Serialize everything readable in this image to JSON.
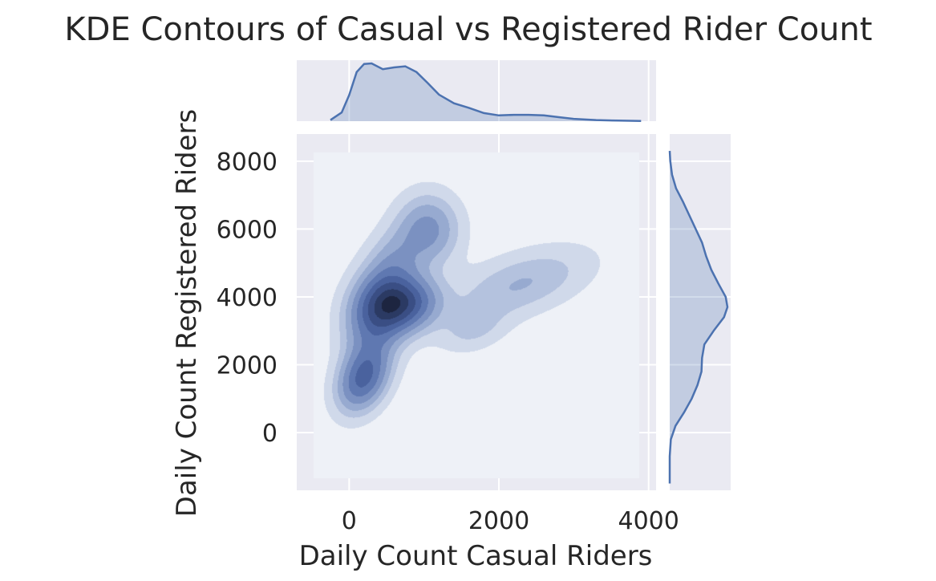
{
  "chart_data": {
    "type": "kde-contour-joint",
    "title": "KDE Contours of Casual vs Registered Rider Count",
    "xlabel": "Daily Count Casual Riders",
    "ylabel": "Daily Count Registered Riders",
    "xlim": [
      -700,
      4100
    ],
    "ylim": [
      -1700,
      8800
    ],
    "xticks": [
      0,
      2000,
      4000
    ],
    "yticks": [
      0,
      2000,
      4000,
      6000,
      8000
    ],
    "xtick_labels": [
      "0",
      "2000",
      "4000"
    ],
    "ytick_labels": [
      "0",
      "2000",
      "4000",
      "6000",
      "8000"
    ],
    "grid": true,
    "style": "seaborn darkgrid",
    "colors": {
      "background": "#eaeaf2",
      "grid": "#ffffff",
      "accent": "#4c72b0",
      "contour_levels": [
        "#eef1f7",
        "#d0d9ea",
        "#b4c2de",
        "#97aad0",
        "#7b91c1",
        "#5f78b1",
        "#4a629e",
        "#3a4e84",
        "#2b3a63",
        "#1d2540"
      ]
    },
    "kde_components": [
      {
        "x": 180,
        "y": 1600,
        "sx": 230,
        "sy": 650,
        "rho": 0.3,
        "w": 0.22
      },
      {
        "x": 700,
        "y": 3800,
        "sx": 320,
        "sy": 550,
        "rho": 0.1,
        "w": 0.26
      },
      {
        "x": 350,
        "y": 3500,
        "sx": 280,
        "sy": 900,
        "rho": 0.2,
        "w": 0.18
      },
      {
        "x": 1050,
        "y": 6000,
        "sx": 280,
        "sy": 700,
        "rho": 0.0,
        "w": 0.13
      },
      {
        "x": 600,
        "y": 5000,
        "sx": 250,
        "sy": 700,
        "rho": 0.2,
        "w": 0.08
      },
      {
        "x": 1650,
        "y": 3050,
        "sx": 300,
        "sy": 450,
        "rho": 0.3,
        "w": 0.05
      },
      {
        "x": 2300,
        "y": 4400,
        "sx": 600,
        "sy": 700,
        "rho": 0.5,
        "w": 0.08
      }
    ],
    "marginal_x_density": [
      {
        "x": -250,
        "d": 0.02
      },
      {
        "x": -100,
        "d": 0.15
      },
      {
        "x": 0,
        "d": 0.45
      },
      {
        "x": 100,
        "d": 0.85
      },
      {
        "x": 200,
        "d": 0.99
      },
      {
        "x": 300,
        "d": 1.0
      },
      {
        "x": 450,
        "d": 0.9
      },
      {
        "x": 600,
        "d": 0.93
      },
      {
        "x": 750,
        "d": 0.95
      },
      {
        "x": 900,
        "d": 0.85
      },
      {
        "x": 1050,
        "d": 0.66
      },
      {
        "x": 1200,
        "d": 0.46
      },
      {
        "x": 1400,
        "d": 0.31
      },
      {
        "x": 1600,
        "d": 0.23
      },
      {
        "x": 1800,
        "d": 0.14
      },
      {
        "x": 2000,
        "d": 0.1
      },
      {
        "x": 2200,
        "d": 0.11
      },
      {
        "x": 2400,
        "d": 0.11
      },
      {
        "x": 2600,
        "d": 0.1
      },
      {
        "x": 2800,
        "d": 0.07
      },
      {
        "x": 3000,
        "d": 0.04
      },
      {
        "x": 3300,
        "d": 0.02
      },
      {
        "x": 3600,
        "d": 0.01
      },
      {
        "x": 3900,
        "d": 0.003
      }
    ],
    "marginal_y_density": [
      {
        "y": -1500,
        "d": 0.0
      },
      {
        "y": -700,
        "d": 0.0
      },
      {
        "y": -200,
        "d": 0.02
      },
      {
        "y": 200,
        "d": 0.1
      },
      {
        "y": 600,
        "d": 0.25
      },
      {
        "y": 1000,
        "d": 0.38
      },
      {
        "y": 1400,
        "d": 0.48
      },
      {
        "y": 1800,
        "d": 0.55
      },
      {
        "y": 2200,
        "d": 0.56
      },
      {
        "y": 2600,
        "d": 0.6
      },
      {
        "y": 3000,
        "d": 0.76
      },
      {
        "y": 3400,
        "d": 0.94
      },
      {
        "y": 3700,
        "d": 1.0
      },
      {
        "y": 4000,
        "d": 0.97
      },
      {
        "y": 4400,
        "d": 0.84
      },
      {
        "y": 4800,
        "d": 0.72
      },
      {
        "y": 5200,
        "d": 0.63
      },
      {
        "y": 5600,
        "d": 0.56
      },
      {
        "y": 6000,
        "d": 0.45
      },
      {
        "y": 6400,
        "d": 0.34
      },
      {
        "y": 6800,
        "d": 0.23
      },
      {
        "y": 7200,
        "d": 0.11
      },
      {
        "y": 7600,
        "d": 0.04
      },
      {
        "y": 8000,
        "d": 0.01
      },
      {
        "y": 8300,
        "d": 0.0
      }
    ]
  }
}
